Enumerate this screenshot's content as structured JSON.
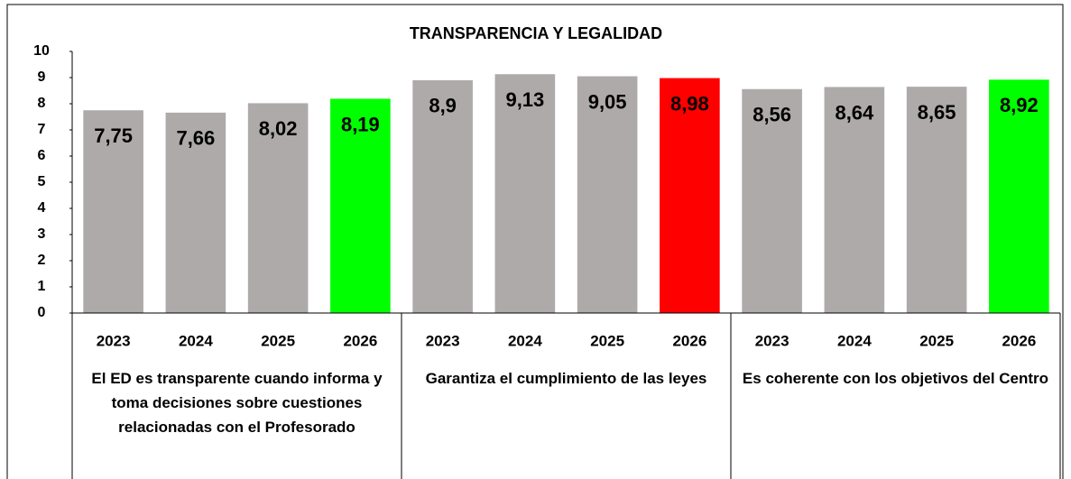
{
  "chart_data": {
    "type": "bar",
    "title": "TRANSPARENCIA Y LEGALIDAD",
    "ylim": [
      0,
      10
    ],
    "yticks": [
      0,
      1,
      2,
      3,
      4,
      5,
      6,
      7,
      8,
      9,
      10
    ],
    "groups": [
      {
        "name": "El ED es transparente cuando informa y toma decisiones sobre cuestiones relacionadas con el Profesorado",
        "categories": [
          "2023",
          "2024",
          "2025",
          "2026"
        ],
        "values": [
          7.75,
          7.66,
          8.02,
          8.19
        ],
        "value_labels": [
          "7,75",
          "7,66",
          "8,02",
          "8,19"
        ],
        "colors": [
          "#aeaaaa",
          "#aeaaaa",
          "#aeaaaa",
          "#00ff00"
        ]
      },
      {
        "name": "Garantiza el cumplimiento de las leyes",
        "categories": [
          "2023",
          "2024",
          "2025",
          "2026"
        ],
        "values": [
          8.9,
          9.13,
          9.05,
          8.98
        ],
        "value_labels": [
          "8,9",
          "9,13",
          "9,05",
          "8,98"
        ],
        "colors": [
          "#aeaaaa",
          "#aeaaaa",
          "#aeaaaa",
          "#ff0000"
        ]
      },
      {
        "name": "Es coherente con los objetivos del Centro",
        "categories": [
          "2023",
          "2024",
          "2025",
          "2026"
        ],
        "values": [
          8.56,
          8.64,
          8.65,
          8.92
        ],
        "value_labels": [
          "8,56",
          "8,64",
          "8,65",
          "8,92"
        ],
        "colors": [
          "#aeaaaa",
          "#aeaaaa",
          "#aeaaaa",
          "#00ff00"
        ]
      }
    ]
  }
}
